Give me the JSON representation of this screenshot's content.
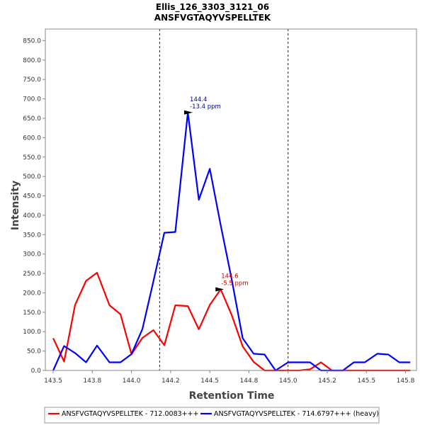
{
  "chart_data": {
    "type": "line",
    "title": "Ellis_126_3303_3121_06",
    "subtitle": "ANSFVGTAQYVSPELLTEK",
    "xlabel": "Retention Time",
    "ylabel": "Intensity",
    "xlim": [
      143.45,
      145.82
    ],
    "ylim": [
      0,
      880
    ],
    "x_ticks": [
      "143.5",
      "143.8",
      "144.0",
      "144.2",
      "144.5",
      "144.8",
      "145.0",
      "145.2",
      "145.5",
      "145.8"
    ],
    "x_tick_values": [
      143.5,
      143.75,
      144.0,
      144.25,
      144.5,
      144.75,
      145.0,
      145.25,
      145.5,
      145.75
    ],
    "y_ticks": [
      "0.0",
      "50.0",
      "100.0",
      "150.0",
      "200.0",
      "250.0",
      "300.0",
      "350.0",
      "400.0",
      "450.0",
      "500.0",
      "550.0",
      "600.0",
      "650.0",
      "700.0",
      "750.0",
      "800.0",
      "850.0"
    ],
    "y_tick_values": [
      0,
      50,
      100,
      150,
      200,
      250,
      300,
      350,
      400,
      450,
      500,
      550,
      600,
      650,
      700,
      750,
      800,
      850
    ],
    "vlines": [
      144.18,
      145.0
    ],
    "grid": false,
    "legend_position": "bottom",
    "series": [
      {
        "name": "ANSFVGTAQYVSPELLTEK - 712.0083+++",
        "color": "#ff0000",
        "x": [
          143.5,
          143.57,
          143.64,
          143.71,
          143.78,
          143.86,
          143.93,
          144.0,
          144.07,
          144.14,
          144.21,
          144.28,
          144.36,
          144.43,
          144.5,
          144.57,
          144.64,
          144.71,
          144.78,
          144.85,
          144.92,
          145.0,
          145.07,
          145.14,
          145.21,
          145.28,
          145.35,
          145.42,
          145.49,
          145.57,
          145.64,
          145.71,
          145.78
        ],
        "y": [
          83,
          23,
          169,
          231,
          252,
          168,
          145,
          42,
          84,
          104,
          65,
          168,
          166,
          106,
          169,
          209,
          143,
          62,
          22,
          0,
          0,
          0,
          0,
          3,
          21,
          0,
          0,
          0,
          0,
          0,
          0,
          0,
          0
        ]
      },
      {
        "name": "ANSFVGTAQYVSPELLTEK - 714.6797+++ (heavy)",
        "color": "#0000ff",
        "x": [
          143.5,
          143.57,
          143.64,
          143.71,
          143.78,
          143.86,
          143.93,
          144.0,
          144.07,
          144.14,
          144.21,
          144.28,
          144.36,
          144.43,
          144.5,
          144.57,
          144.64,
          144.71,
          144.78,
          144.85,
          144.92,
          145.0,
          145.07,
          145.14,
          145.21,
          145.28,
          145.35,
          145.42,
          145.49,
          145.57,
          145.64,
          145.71,
          145.78
        ],
        "y": [
          0,
          63,
          45,
          21,
          64,
          21,
          21,
          42,
          107,
          230,
          355,
          357,
          665,
          440,
          520,
          374,
          235,
          83,
          43,
          41,
          0,
          21,
          21,
          21,
          0,
          0,
          0,
          21,
          21,
          43,
          41,
          21,
          21
        ]
      }
    ],
    "annotations": [
      {
        "series": 1,
        "x": 144.4,
        "y": 665,
        "line1": "144.4",
        "line2": "-13.4 ppm",
        "color": "#000099"
      },
      {
        "series": 0,
        "x": 144.6,
        "y": 209,
        "line1": "144.6",
        "line2": "-5.5 ppm",
        "color": "#cc0000"
      }
    ]
  }
}
